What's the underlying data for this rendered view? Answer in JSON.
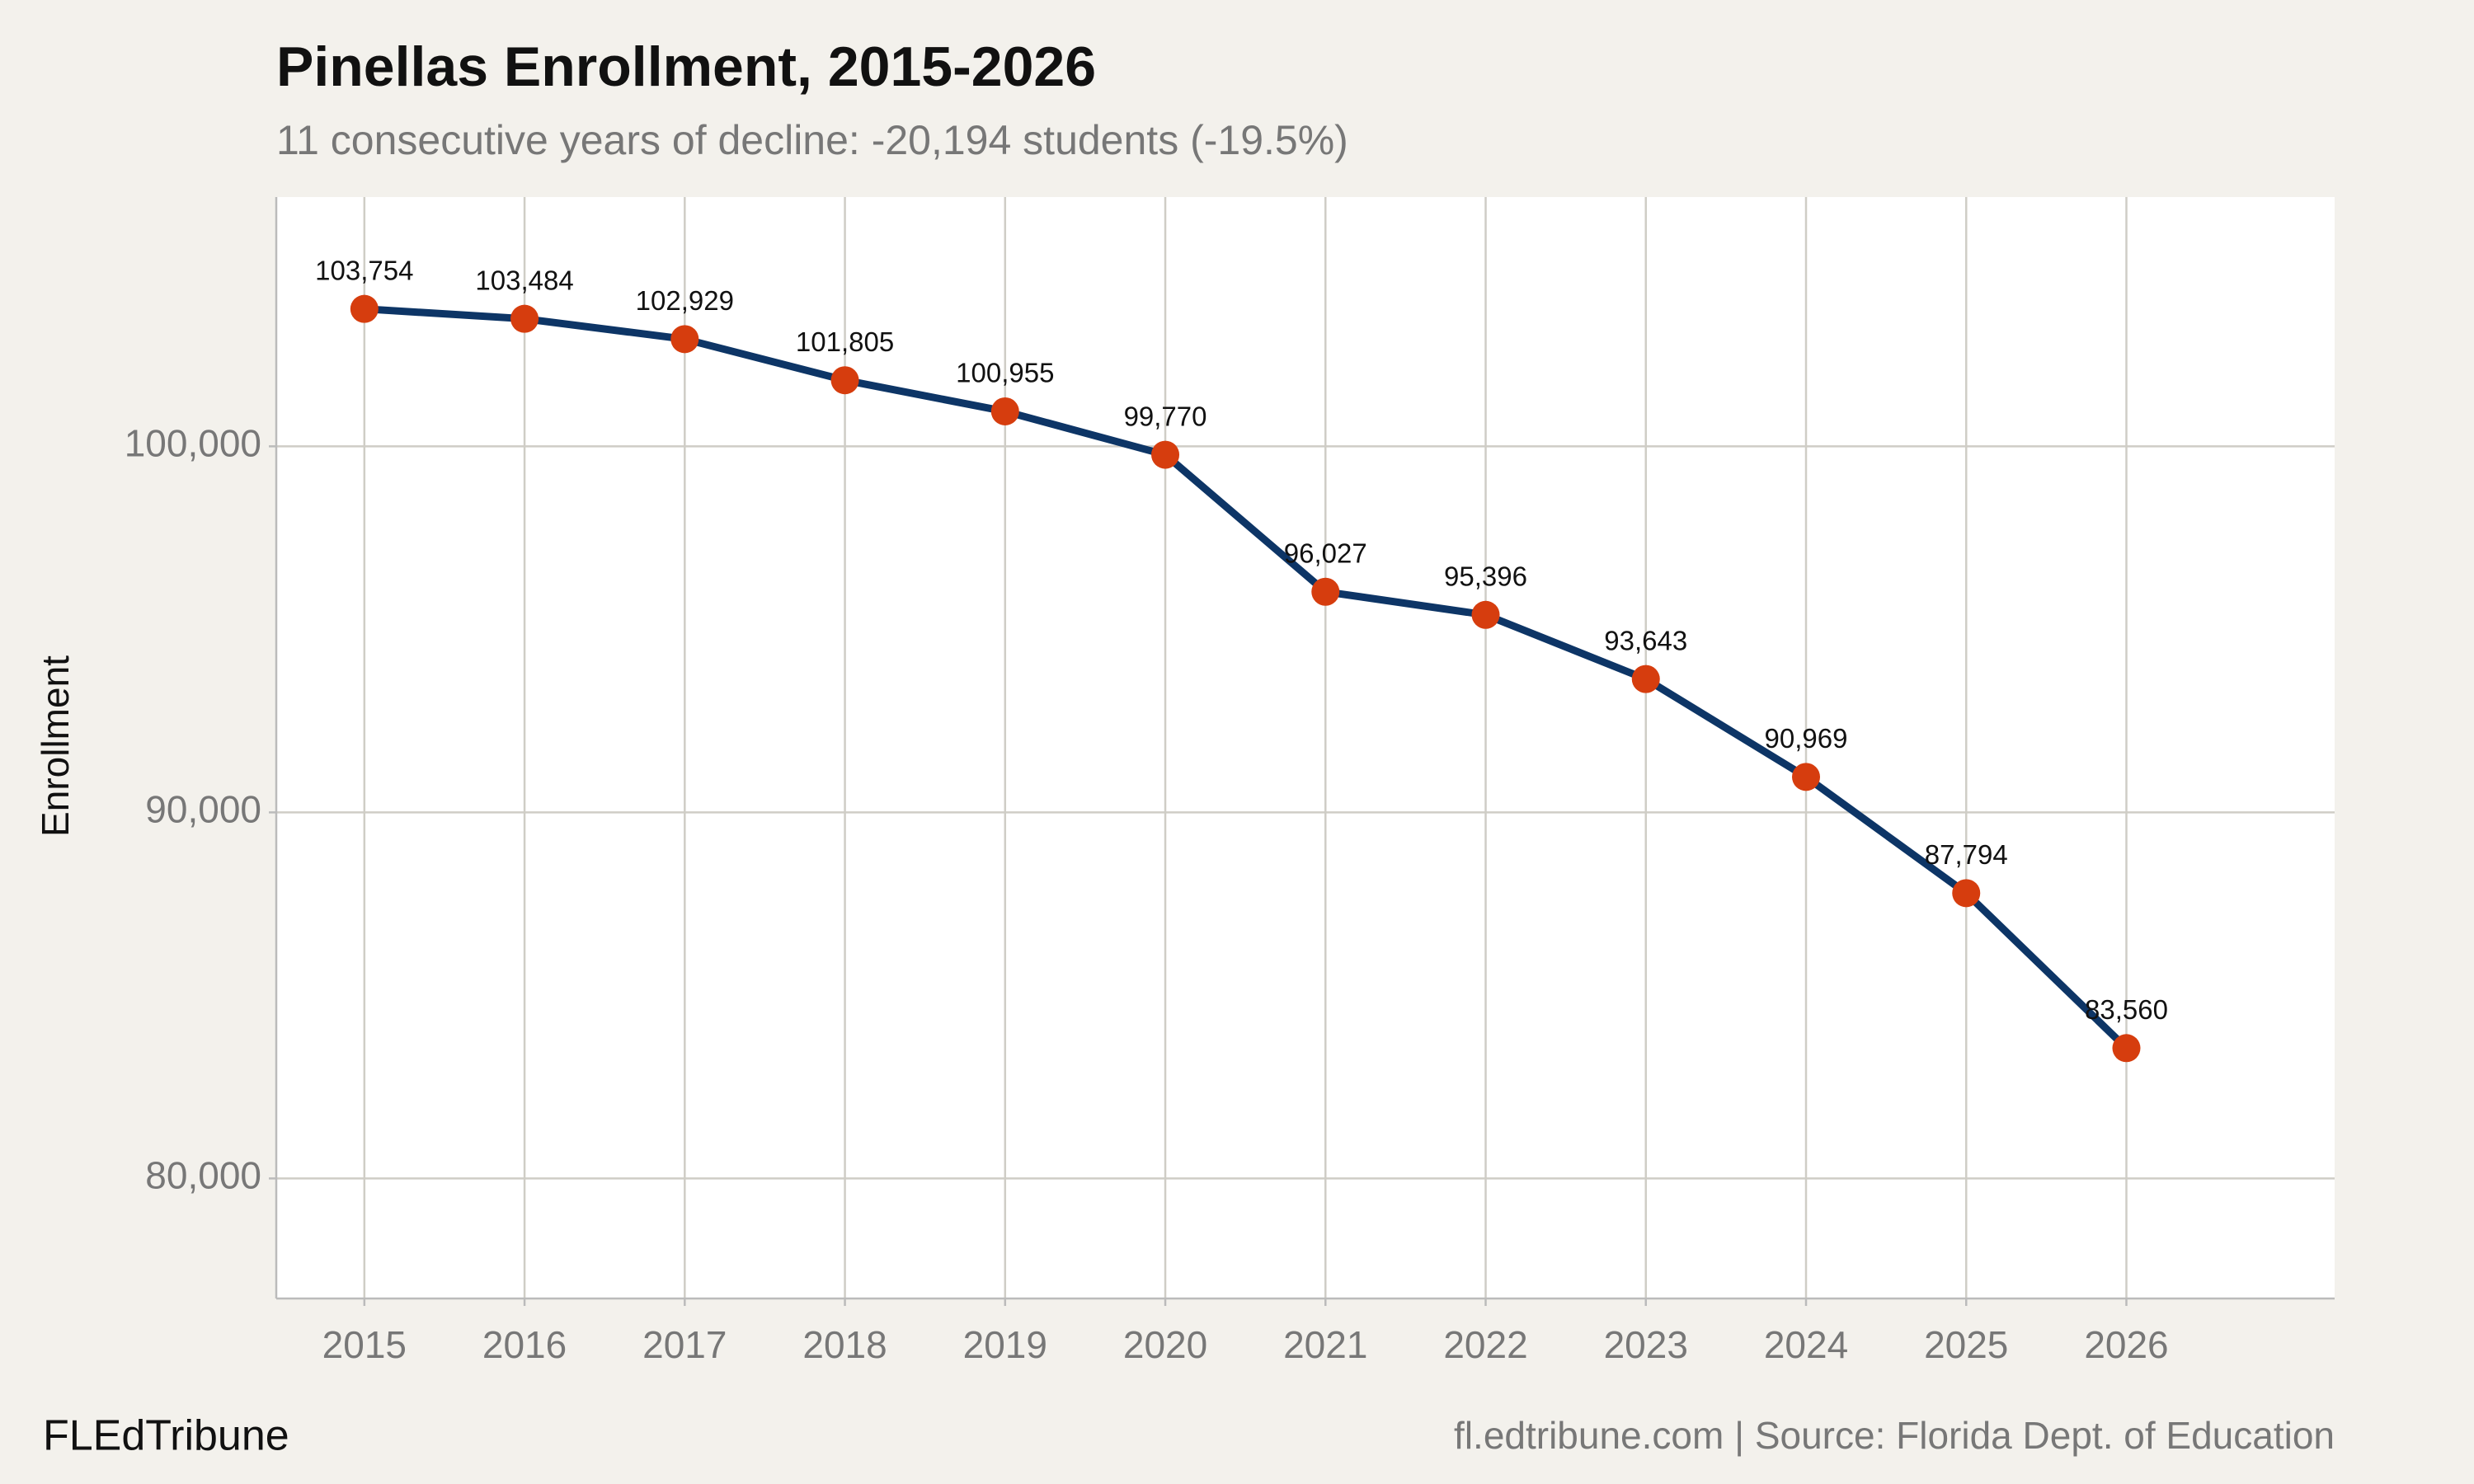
{
  "chart_data": {
    "type": "line",
    "title": "Pinellas Enrollment, 2015-2026",
    "subtitle": "11 consecutive years of decline: -20,194 students (-19.5%)",
    "y_label": "Enrollment",
    "brand": "FLEdTribune",
    "caption": "fl.edtribune.com | Source: Florida Dept. of Education",
    "x": [
      2015,
      2016,
      2017,
      2018,
      2019,
      2020,
      2021,
      2022,
      2023,
      2024,
      2025,
      2026
    ],
    "series": [
      {
        "name": "Enrollment",
        "color": "#0d3566",
        "marker_color": "#d63d0e",
        "values": [
          103754,
          103484,
          102929,
          101805,
          100955,
          99770,
          96027,
          95396,
          93643,
          90969,
          87794,
          83560
        ],
        "value_labels": [
          "103,754",
          "103,484",
          "102,929",
          "101,805",
          "100,955",
          "99,770",
          "96,027",
          "95,396",
          "93,643",
          "90,969",
          "87,794",
          "83,560"
        ]
      }
    ],
    "xlim": [
      2014.45,
      2027.3
    ],
    "xticks": [
      2015,
      2016,
      2017,
      2018,
      2019,
      2020,
      2021,
      2022,
      2023,
      2024,
      2025,
      2026
    ],
    "ylim": [
      76720,
      106810
    ],
    "yticks": [
      {
        "value": 80000,
        "label": "80,000"
      },
      {
        "value": 90000,
        "label": "90,000"
      },
      {
        "value": 100000,
        "label": "100,000"
      }
    ],
    "grid": true
  }
}
